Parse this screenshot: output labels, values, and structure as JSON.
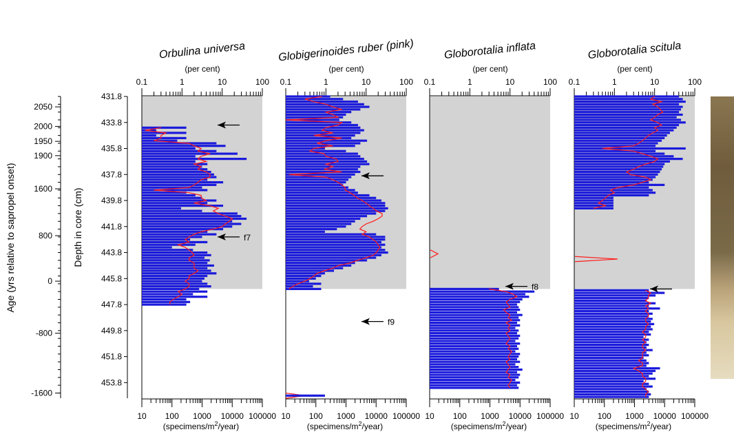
{
  "chart_data": {
    "type": "bar",
    "y_axis_left": {
      "label": "Age (yrs relative to sapropel onset)",
      "ticks": [
        "2050",
        "2000",
        "1950",
        "1900",
        "1600",
        "800",
        "0",
        "-800",
        "-1600"
      ],
      "tick_depths": [
        432.6,
        434.1,
        435.25,
        436.35,
        438.9,
        442.5,
        446.0,
        450.0,
        454.6
      ]
    },
    "y_axis_depth": {
      "label": "Depth in core (cm)",
      "range": [
        431.8,
        455.0
      ],
      "ticks": [
        "431.8",
        "433.8",
        "435.8",
        "437.8",
        "439.8",
        "441.8",
        "443.8",
        "445.8",
        "447.8",
        "449.8",
        "451.8",
        "453.8"
      ],
      "tick_values": [
        431.8,
        433.8,
        435.8,
        437.8,
        439.8,
        441.8,
        443.8,
        445.8,
        447.8,
        449.8,
        451.8,
        453.8
      ]
    },
    "x_axis_bottom": {
      "label": "(specimens/m²/year)",
      "label_text": "(specimens/m",
      "label_sup": "2",
      "label_end": "/year)",
      "scale": "log",
      "range": [
        10,
        100000
      ],
      "ticks": [
        "10",
        "100",
        "1000",
        "10000",
        "100000"
      ]
    },
    "x_axis_top": {
      "label": "(per cent)",
      "scale": "log",
      "range": [
        0.1,
        100
      ],
      "ticks": [
        "0.1",
        "1",
        "10",
        "100"
      ]
    },
    "sapropel_shading": {
      "top_depth": 431.8,
      "bottom_depth": 446.6
    },
    "panels": [
      {
        "title": "Orbulina universa",
        "depth_start": 434.2,
        "flux": [
          300,
          30,
          300,
          30,
          300,
          150,
          3000,
          6000,
          600,
          3000,
          15000,
          600,
          30000,
          600,
          1500,
          1000,
          1500,
          2000,
          2500,
          3000,
          1500,
          5000,
          3000,
          1000,
          1500,
          300,
          600,
          1000,
          3000,
          1500,
          5000,
          200,
          1000,
          15000,
          20000,
          30000,
          10000,
          20000,
          10000,
          5000,
          1500,
          3000,
          1000,
          400,
          1500,
          600,
          100,
          500,
          1500,
          2000,
          1200,
          1800,
          1500,
          2500,
          1500,
          2000,
          3000,
          1500,
          1200,
          1000,
          1500,
          2000,
          800,
          1500,
          500,
          1500,
          300,
          400,
          300
        ],
        "percent": [
          0.3,
          0.12,
          0.4,
          0.3,
          0.3,
          0.2,
          1.5,
          2,
          3,
          2.5,
          5,
          3,
          2.5,
          4,
          2,
          3,
          2.5,
          4,
          5,
          5,
          3,
          2.5,
          2,
          1.5,
          0.2,
          1.5,
          3,
          3,
          4,
          2,
          5,
          8,
          6,
          8,
          12,
          18,
          15,
          12,
          10,
          6,
          3,
          2,
          1.5,
          1.2,
          1.5,
          0.8,
          1.2,
          1.5,
          1.8,
          2,
          1.5,
          1.5,
          2,
          2,
          2,
          2.5,
          2,
          1.5,
          1.5,
          1.2,
          1.5,
          1.5,
          1.2,
          0.8,
          1,
          0.8,
          0.6,
          0.5,
          0.5
        ],
        "arrows": [
          {
            "depth": 434.0,
            "label": ""
          },
          {
            "depth": 442.6,
            "label": "f7"
          }
        ]
      },
      {
        "title": "Globigerinoides ruber (pink)",
        "depth_start": 431.8,
        "flux": [
          300,
          800,
          2500,
          4000,
          6000,
          3000,
          1500,
          1000,
          800,
          600,
          1500,
          2500,
          3000,
          4000,
          3000,
          2000,
          1500,
          5000,
          3000,
          2000,
          200,
          1000,
          2500,
          3000,
          4000,
          5000,
          6000,
          3000,
          2500,
          3000,
          2000,
          1500,
          1200,
          1000,
          800,
          1200,
          2000,
          2500,
          6000,
          10000,
          15000,
          20000,
          20000,
          25000,
          20000,
          10000,
          5000,
          3000,
          2000,
          1500,
          1000,
          500,
          200,
          10000,
          20000,
          20000,
          15000,
          20000,
          15000,
          20000,
          25000,
          15000,
          10000,
          5000,
          2000,
          1500,
          800,
          400,
          200,
          150,
          100,
          60,
          150,
          80,
          150
        ],
        "percent": [
          0.8,
          0.3,
          0.5,
          1,
          1.5,
          2.5,
          1,
          1.5,
          2,
          0.1,
          2.5,
          2,
          1,
          0.8,
          1.5,
          0.5,
          2.5,
          1,
          0.6,
          1.5,
          0.5,
          0.4,
          0.9,
          1,
          1.8,
          2,
          1,
          1.5,
          0.9,
          2.5,
          0.12,
          1,
          1.5,
          2,
          2.5,
          3,
          3,
          4,
          5,
          6,
          8,
          10,
          12,
          15,
          18,
          25,
          25,
          20,
          15,
          10,
          8,
          7,
          10,
          8,
          12,
          15,
          18,
          20,
          22,
          20,
          18,
          15,
          10,
          6,
          4,
          2,
          1.5,
          0.9,
          0.6,
          0.5,
          0.4,
          0.3,
          0.2,
          0.15,
          0.12
        ],
        "tail_flux": [
          0,
          0,
          0
        ],
        "arrows": [
          {
            "depth": 437.9,
            "label": ""
          },
          {
            "depth": 449.1,
            "label": "f9"
          }
        ]
      },
      {
        "title": "Globorotalia inflata",
        "depth_start": 446.6,
        "flux": [
          2000,
          30000,
          15000,
          20000,
          12000,
          10000,
          8000,
          9000,
          10000,
          8000,
          12000,
          9000,
          10000,
          8000,
          10000,
          7000,
          9000,
          8000,
          10000,
          9000,
          7000,
          10000,
          8000,
          9000,
          7000,
          10000,
          9000,
          8000,
          10000,
          7000,
          9000,
          12000,
          8000,
          10000,
          9000,
          7000,
          10000,
          8000,
          9000
        ],
        "percent": [
          3,
          8,
          12,
          15,
          10,
          8,
          9,
          10,
          7,
          8,
          10,
          9,
          11,
          8,
          10,
          9,
          10,
          8,
          9,
          10,
          9,
          8,
          10,
          9,
          11,
          10,
          9,
          10,
          8,
          9,
          10,
          9,
          8,
          10,
          9,
          11,
          10,
          9,
          10
        ],
        "arrows": [
          {
            "depth": 446.4,
            "label": "f8"
          }
        ]
      },
      {
        "title": "Globorotalia scitula",
        "depth_start": 431.8,
        "flux": [
          30000,
          40000,
          50000,
          30000,
          40000,
          35000,
          30000,
          40000,
          25000,
          35000,
          50000,
          30000,
          25000,
          20000,
          15000,
          12000,
          10000,
          8000,
          6000,
          5000,
          50000,
          5000,
          10000,
          20000,
          40000,
          15000,
          10000,
          9000,
          8000,
          7000,
          6000,
          5000,
          4000,
          3000,
          10000,
          3000,
          4000,
          5000,
          3000,
          200,
          200,
          200,
          200,
          200
        ],
        "percent": [
          10,
          8,
          15,
          9,
          12,
          14,
          16,
          12,
          10,
          8,
          12,
          15,
          10,
          12,
          9,
          7,
          6,
          5,
          4,
          3,
          0.5,
          3,
          5,
          8,
          12,
          10,
          6,
          4,
          3,
          2,
          2.5,
          6,
          8,
          5,
          3,
          1.2,
          0.8,
          1,
          0.7,
          0.6,
          0.5,
          0.4,
          0.6,
          0.3
        ],
        "flux2": [
          3000,
          10000,
          5000,
          3000,
          2500,
          5000,
          3000,
          7000,
          3000,
          4000,
          3000,
          4000,
          3500,
          4500,
          3500,
          4000,
          3000,
          3500,
          2000,
          3000,
          2500,
          3000,
          2500,
          4000,
          2500,
          3000,
          2000,
          2500,
          3000,
          2500,
          7000,
          5000,
          4000,
          3000,
          5000,
          2000,
          3000,
          4000,
          2500,
          3000,
          3500,
          3000
        ],
        "percent2": [
          6,
          8,
          7,
          7,
          6,
          8,
          6,
          7,
          6,
          7,
          7,
          6,
          6,
          7,
          6,
          6,
          5,
          6,
          6,
          5,
          6,
          5,
          5,
          6,
          5,
          5,
          5,
          4,
          5,
          5,
          3,
          4,
          5,
          5,
          6,
          6,
          5,
          5,
          6,
          7,
          6,
          6
        ],
        "arrows": [
          {
            "depth": 446.6,
            "label": ""
          }
        ]
      }
    ]
  }
}
